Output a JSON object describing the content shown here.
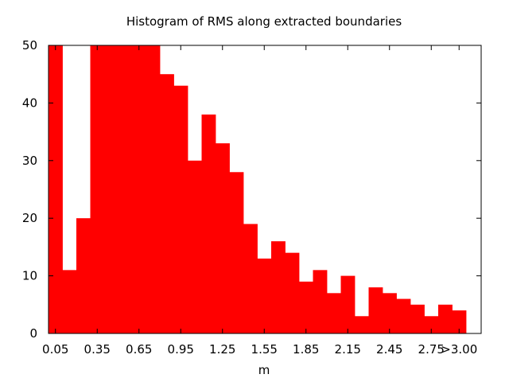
{
  "chart_data": {
    "type": "bar",
    "title": "Histogram of RMS along extracted boundaries",
    "xlabel": "m",
    "ylabel": "",
    "categories": [
      "0.05",
      "0.15",
      "0.25",
      "0.35",
      "0.45",
      "0.55",
      "0.65",
      "0.75",
      "0.85",
      "0.95",
      "1.05",
      "1.15",
      "1.25",
      "1.35",
      "1.45",
      "1.55",
      "1.65",
      "1.75",
      "1.85",
      "1.95",
      "2.05",
      "2.15",
      "2.25",
      "2.35",
      "2.45",
      "2.55",
      "2.65",
      "2.75",
      "2.85",
      "3.00"
    ],
    "values": [
      50,
      11,
      20,
      50,
      50,
      50,
      50,
      50,
      45,
      43,
      30,
      38,
      33,
      28,
      19,
      13,
      16,
      14,
      9,
      11,
      7,
      10,
      3,
      8,
      7,
      6,
      5,
      3,
      5,
      4
    ],
    "xtick_labels": [
      "0.05",
      "0.35",
      "0.65",
      "0.95",
      "1.25",
      "1.55",
      "1.85",
      "2.15",
      "2.45",
      "2.75",
      ">3.00"
    ],
    "yticks": [
      0,
      10,
      20,
      30,
      40,
      50
    ],
    "ylim": [
      0,
      50
    ],
    "bar_color": "#ff0000",
    "grid": false,
    "legend": "none"
  }
}
